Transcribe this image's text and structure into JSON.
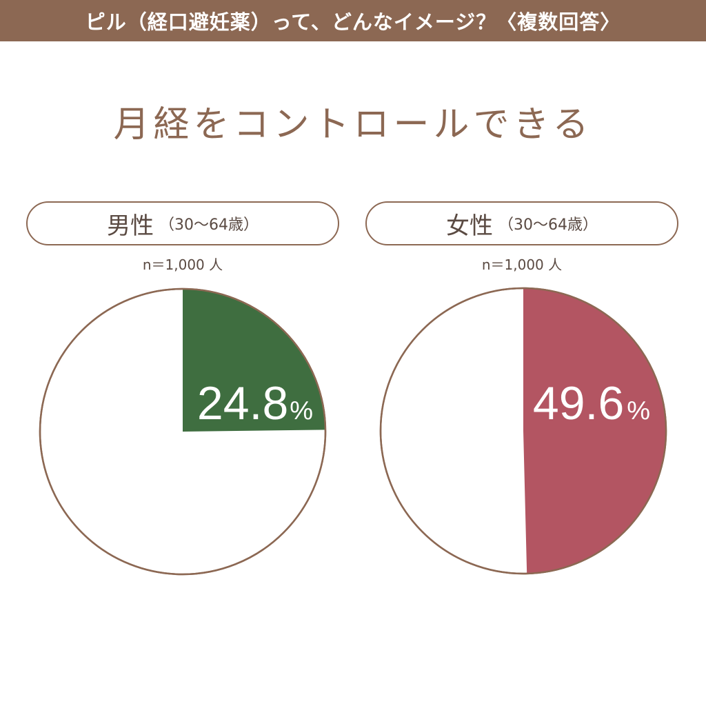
{
  "banner": {
    "title": "ピル（経口避妊薬）って、どんなイメージ？〈複数回答〉"
  },
  "subtitle": "月経をコントロールできる",
  "colors": {
    "brown": "#8c6853",
    "male": "#3f6e40",
    "female": "#b35562"
  },
  "chart_data": [
    {
      "type": "pie",
      "group": "男性",
      "age_range": "（30〜64歳）",
      "n_label": "n＝1,000 人",
      "value": 24.8,
      "value_label": "24.8",
      "unit": "%",
      "color": "#3f6e40"
    },
    {
      "type": "pie",
      "group": "女性",
      "age_range": "（30〜64歳）",
      "n_label": "n＝1,000 人",
      "value": 49.6,
      "value_label": "49.6",
      "unit": "%",
      "color": "#b35562"
    }
  ]
}
